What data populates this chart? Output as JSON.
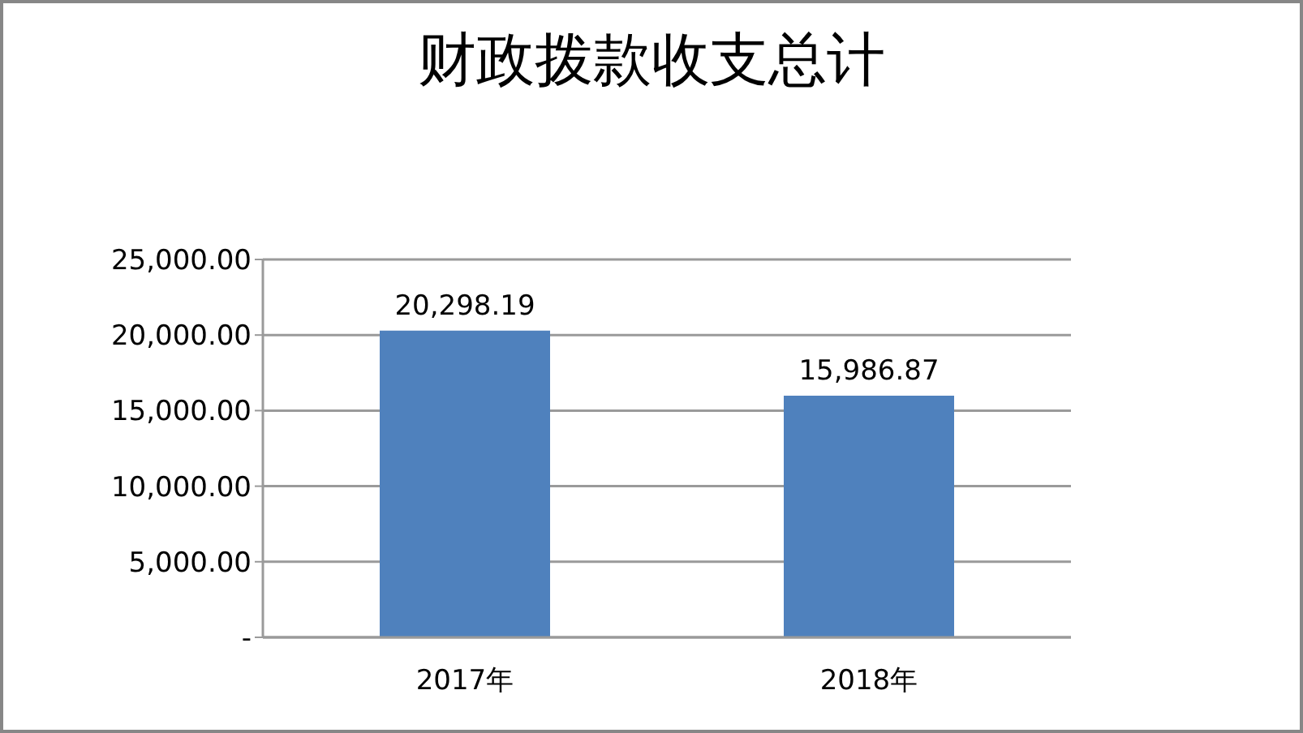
{
  "chart_data": {
    "type": "bar",
    "title": "财政拨款收支总计",
    "categories": [
      "2017年",
      "2018年"
    ],
    "values": [
      20298.19,
      15986.87
    ],
    "value_labels": [
      "20,298.19",
      "15,986.87"
    ],
    "color": "#4f81bd",
    "ylim": [
      0,
      25000
    ],
    "yticks": [
      {
        "value": 0,
        "label": "-"
      },
      {
        "value": 5000,
        "label": "5,000.00"
      },
      {
        "value": 10000,
        "label": "10,000.00"
      },
      {
        "value": 15000,
        "label": "15,000.00"
      },
      {
        "value": 20000,
        "label": "20,000.00"
      },
      {
        "value": 25000,
        "label": "25,000.00"
      }
    ],
    "grid": "y"
  }
}
